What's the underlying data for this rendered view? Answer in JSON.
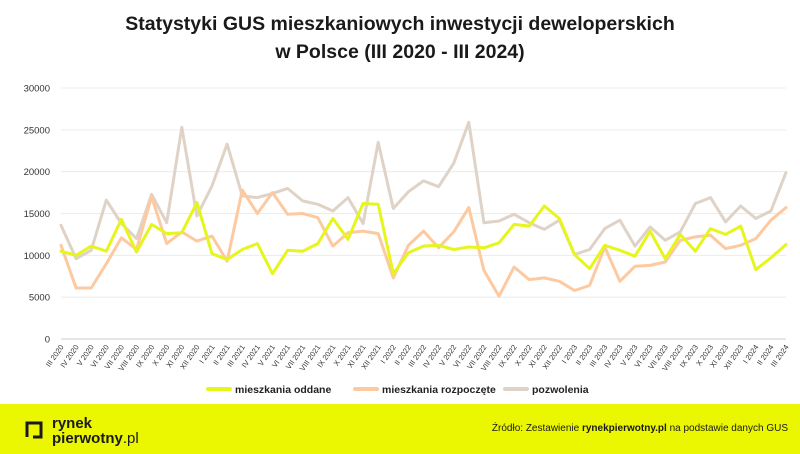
{
  "title_line1": "Statystyki GUS mieszkaniowych inwestycji deweloperskich",
  "title_line2": "w Polsce (III 2020 - III 2024)",
  "footer": {
    "logo_line1": "rynek",
    "logo_line2a": "pierwotny",
    "logo_line2b": ".pl",
    "source_prefix": "Źródło: Zestawienie ",
    "source_bold": "rynekpierwotny.pl",
    "source_suffix": " na podstawie danych GUS"
  },
  "chart_data": {
    "type": "line",
    "ylim": [
      0,
      30000
    ],
    "yticks": [
      0,
      5000,
      10000,
      15000,
      20000,
      25000,
      30000
    ],
    "grid": true,
    "legend_position": "bottom",
    "categories": [
      "III 2020",
      "IV 2020",
      "V 2020",
      "VI 2020",
      "VII 2020",
      "VIII 2020",
      "IX 2020",
      "X 2020",
      "XI 2020",
      "XII 2020",
      "I 2021",
      "II 2021",
      "III 2021",
      "IV 2021",
      "V 2021",
      "VI 2021",
      "VII 2021",
      "VIII 2021",
      "IX 2021",
      "X 2021",
      "XI 2021",
      "XII 2021",
      "I 2022",
      "II 2022",
      "III 2022",
      "IV 2022",
      "V 2022",
      "VI 2022",
      "VII 2022",
      "VIII 2022",
      "IX 2022",
      "X 2022",
      "XI 2022",
      "XII 2022",
      "I 2023",
      "II 2023",
      "III 2023",
      "IV 2023",
      "V 2023",
      "VI 2023",
      "VII 2023",
      "VIII 2023",
      "IX 2023",
      "X 2023",
      "XI 2023",
      "XII 2023",
      "I 2024",
      "II 2024",
      "III 2024"
    ],
    "x_tick_labels": [
      "III 2020",
      "IV 2020",
      "V 2020",
      "VI 2020",
      "VII 2020",
      "VIII 2020",
      "IX 2020",
      "X 2020",
      "XI 2020",
      "XII 2020",
      "I 2021",
      "II 2021",
      "III 2021",
      "IV 2021",
      "V 2021",
      "VI 2021",
      "VII 2021",
      "VIII 2021",
      "IX 2021",
      "X 2021",
      "XI 2021",
      "XII 2021",
      "I 2022",
      "II 2022",
      "III 2022",
      "IV 2022",
      "V 2022",
      "VI 2022",
      "VII 2022",
      "VIII 2022",
      "IX 2022",
      "X 2022",
      "XI 2022",
      "XII 2022",
      "I 2023",
      "II 2023",
      "III 2023",
      "IV 2023",
      "V 2023",
      "VI 2023",
      "VII 2023",
      "VIII 2023",
      "IX 2023",
      "X 2023",
      "XI 2023",
      "XII 2023",
      "I 2024",
      "II 2024",
      "III 2024"
    ],
    "series": [
      {
        "name": "mieszkania oddane",
        "color": "#e6f51c",
        "values": [
          10500,
          10000,
          11100,
          10500,
          14300,
          10400,
          13700,
          12600,
          12700,
          16300,
          10200,
          9500,
          10700,
          11400,
          7800,
          10600,
          10500,
          11400,
          14400,
          11900,
          16200,
          16100,
          7800,
          10300,
          11100,
          11200,
          10700,
          11000,
          10900,
          11500,
          13700,
          13500,
          15900,
          14400,
          10100,
          8400,
          11200,
          10600,
          9900,
          12900,
          9600,
          12500,
          10500,
          13200,
          12500,
          13500,
          8300,
          9700,
          11300
        ]
      },
      {
        "name": "mieszkania rozpoczęte",
        "color": "#fdc9a0",
        "values": [
          11200,
          6100,
          6100,
          9000,
          12100,
          10700,
          17000,
          11400,
          12800,
          11700,
          12300,
          9300,
          17800,
          15000,
          17500,
          14900,
          15000,
          14500,
          11100,
          12700,
          12900,
          12600,
          7300,
          11200,
          12900,
          10900,
          12800,
          15700,
          8200,
          5100,
          8600,
          7100,
          7300,
          6900,
          5800,
          6400,
          11000,
          6900,
          8700,
          8800,
          9200,
          11800,
          12200,
          12400,
          10800,
          11200,
          12000,
          14200,
          15700
        ]
      },
      {
        "name": "pozwolenia",
        "color": "#dfd3c7",
        "values": [
          13600,
          9600,
          10600,
          16600,
          13800,
          12000,
          17300,
          13900,
          25300,
          14700,
          18300,
          23300,
          17100,
          16900,
          17400,
          18000,
          16500,
          16100,
          15300,
          16900,
          13800,
          23500,
          15600,
          17600,
          18900,
          18200,
          21000,
          25900,
          13900,
          14100,
          14900,
          13900,
          13100,
          14200,
          10100,
          10700,
          13200,
          14200,
          11100,
          13400,
          11800,
          12800,
          16200,
          16900,
          14000,
          15900,
          14400,
          15300,
          19900
        ]
      }
    ]
  }
}
